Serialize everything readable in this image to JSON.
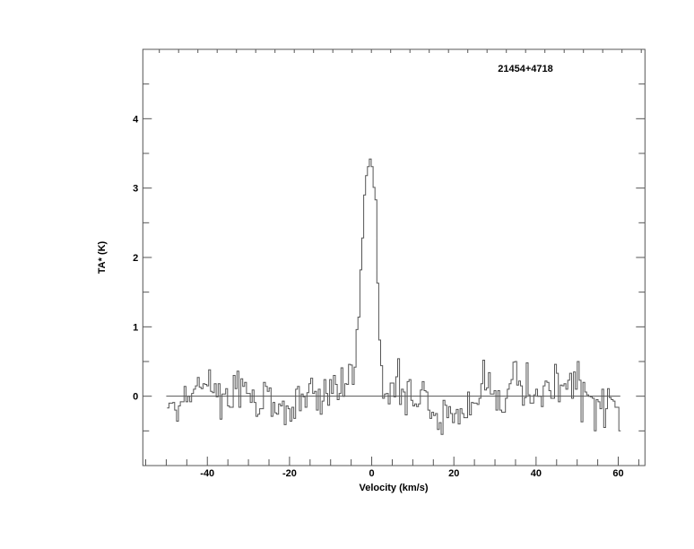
{
  "chart_data": {
    "type": "line",
    "style": "histogram-step",
    "title": "21454+4718",
    "xlabel": "Velocity (km/s)",
    "ylabel": "TA* (K)",
    "xlim": [
      -55.7,
      66.5
    ],
    "ylim": [
      -1.0,
      5.0
    ],
    "x_ticks": [
      -40,
      -20,
      0,
      20,
      40,
      60
    ],
    "x_tick_labels": [
      "-40",
      "-20",
      "0",
      "20",
      "40",
      "60"
    ],
    "y_ticks": [
      0,
      1,
      2,
      3,
      4
    ],
    "y_tick_labels": [
      "0",
      "1",
      "2",
      "3",
      "4"
    ],
    "grid": false,
    "baseline": 0,
    "line_color": "#555555",
    "series": [
      {
        "x_start": -49.8,
        "x_end": 60.6,
        "values": [
          -0.17,
          -0.1,
          -0.1,
          -0.09,
          -0.2,
          -0.36,
          -0.14,
          -0.08,
          -0.08,
          0.14,
          -0.08,
          0,
          -0.08,
          0.04,
          0.1,
          0.15,
          0.27,
          0.13,
          0.11,
          0.18,
          0.17,
          0.15,
          0.38,
          0.07,
          0.05,
          0.18,
          -0.01,
          0.18,
          -0.33,
          0.03,
          0.03,
          0.11,
          -0.14,
          -0.16,
          -0.16,
          0.3,
          0.11,
          0.36,
          -0.16,
          0.25,
          0.14,
          0.2,
          0.04,
          0.04,
          -0.09,
          0.09,
          -0.09,
          -0.29,
          -0.26,
          -0.18,
          -0.18,
          0.2,
          0.14,
          0.07,
          0.12,
          -0.29,
          -0.09,
          -0.24,
          -0.26,
          -0.11,
          -0.14,
          -0.07,
          -0.41,
          -0.14,
          -0.18,
          -0.36,
          -0.16,
          -0.32,
          0.1,
          0.14,
          -0.21,
          0.03,
          -0.01,
          -0.16,
          0.05,
          0.18,
          0.26,
          0.04,
          0.07,
          -0.2,
          0.1,
          -0.26,
          -0.07,
          0.24,
          0.04,
          -0.13,
          0.24,
          0.04,
          0.3,
          0.17,
          -0.05,
          0.04,
          0.41,
          0,
          0.18,
          0.17,
          0.46,
          0.45,
          0.17,
          0.42,
          0.96,
          1.14,
          1.82,
          2.28,
          2.9,
          3.18,
          3.31,
          3.42,
          3.31,
          3.01,
          2.83,
          1.63,
          0.81,
          0.44,
          -0.03,
          0.03,
          0.04,
          -0.11,
          0.19,
          0.19,
          -0.01,
          0.28,
          0.54,
          -0.12,
          0.1,
          0.06,
          -0.27,
          0.21,
          0.24,
          -0.06,
          -0.14,
          -0.11,
          -0.15,
          -0.11,
          0.09,
          0.21,
          0.08,
          0.06,
          -0.2,
          -0.32,
          -0.23,
          -0.28,
          -0.25,
          -0.48,
          -0.38,
          -0.55,
          -0.06,
          -0.13,
          -0.31,
          -0.15,
          -0.25,
          -0.38,
          -0.25,
          -0.19,
          -0.4,
          -0.18,
          -0.25,
          -0.31,
          -0.31,
          0.06,
          -0.27,
          -0.09,
          -0.1,
          -0.1,
          -0.12,
          -0.03,
          0.18,
          0.52,
          0.09,
          0.12,
          0.34,
          0.03,
          0.03,
          0.08,
          -0.2,
          0.08,
          -0.2,
          -0.23,
          -0.23,
          -0.03,
          0.1,
          0.18,
          0.24,
          0.49,
          0.5,
          0.16,
          0.22,
          0.15,
          -0.13,
          -0.02,
          0.48,
          0.02,
          -0.1,
          -0.1,
          0.02,
          0.1,
          0,
          0,
          -0.15,
          0.15,
          0.22,
          0.2,
          0.08,
          -0.03,
          -0.03,
          0.46,
          0.33,
          -0.08,
          0.16,
          0.15,
          0.18,
          0.1,
          0.23,
          0.33,
          -0.03,
          0.35,
          0.1,
          0.5,
          0.23,
          -0.37,
          0.2,
          0.06,
          0.02,
          0,
          -0.01,
          -0.03,
          -0.5,
          -0.05,
          -0.08,
          -0.18,
          0.1,
          -0.45,
          -0.18,
          0.11,
          -0.02,
          -0.05,
          -0.07,
          -0.16,
          -0.16,
          -0.5
        ]
      }
    ]
  }
}
